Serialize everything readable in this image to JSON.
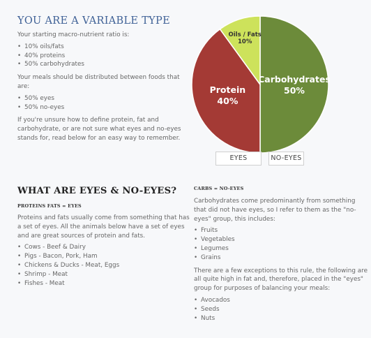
{
  "variable": {
    "title": "YOU ARE A VARIABLE TYPE",
    "ratio_intro": "Your starting macro-nutrient ratio is:",
    "ratio_items": [
      "10% oils/fats",
      "40% proteins",
      "50% carbohydrates"
    ],
    "meals_intro": "Your meals should be distributed between foods that are:",
    "meals_items": [
      "50% eyes",
      "50% no-eyes"
    ],
    "unsure_text": "If you're unsure how to define protein, fat and carbohydrate, or are not sure what eyes and no-eyes stands for, read below for an easy way to remember."
  },
  "chart_data": {
    "type": "pie",
    "slices": [
      {
        "label": "Carbohydrates",
        "value": 50,
        "value_label": "50%",
        "color": "#6c8b3a"
      },
      {
        "label": "Protein",
        "value": 40,
        "value_label": "40%",
        "color": "#a43a35"
      },
      {
        "label": "Oils / Fats",
        "value": 10,
        "value_label": "10%",
        "color": "#cde25b"
      }
    ]
  },
  "tags": {
    "eyes": "EYES",
    "no_eyes": "NO-EYES"
  },
  "eyes_section": {
    "title": "WHAT ARE EYES & NO-EYES?",
    "proteins_heading": "PROTEINS FATS = EYES",
    "proteins_text": "Proteins and fats usually come from something that has a set of eyes. All the animals below have a set of eyes and are great sources of protein and fats.",
    "animal_items": [
      "Cows - Beef & Dairy",
      "Pigs - Bacon, Pork, Ham",
      "Chickens & Ducks - Meat, Eggs",
      "Shrimp - Meat",
      "Fishes - Meat"
    ],
    "carbs_heading": "CARBS = NO-EYES",
    "carbs_text": "Carbohydrates come predominantly from something that did not have eyes, so I refer to them as the \"no-eyes\" group, this includes:",
    "carb_items": [
      "Fruits",
      "Vegetables",
      "Legumes",
      "Grains"
    ],
    "exceptions_text": "There are a few exceptions to this rule, the following are all quite high in fat and, therefore, placed in the \"eyes\" group for purposes of balancing your meals:",
    "exception_items": [
      "Avocados",
      "Seeds",
      "Nuts"
    ]
  }
}
